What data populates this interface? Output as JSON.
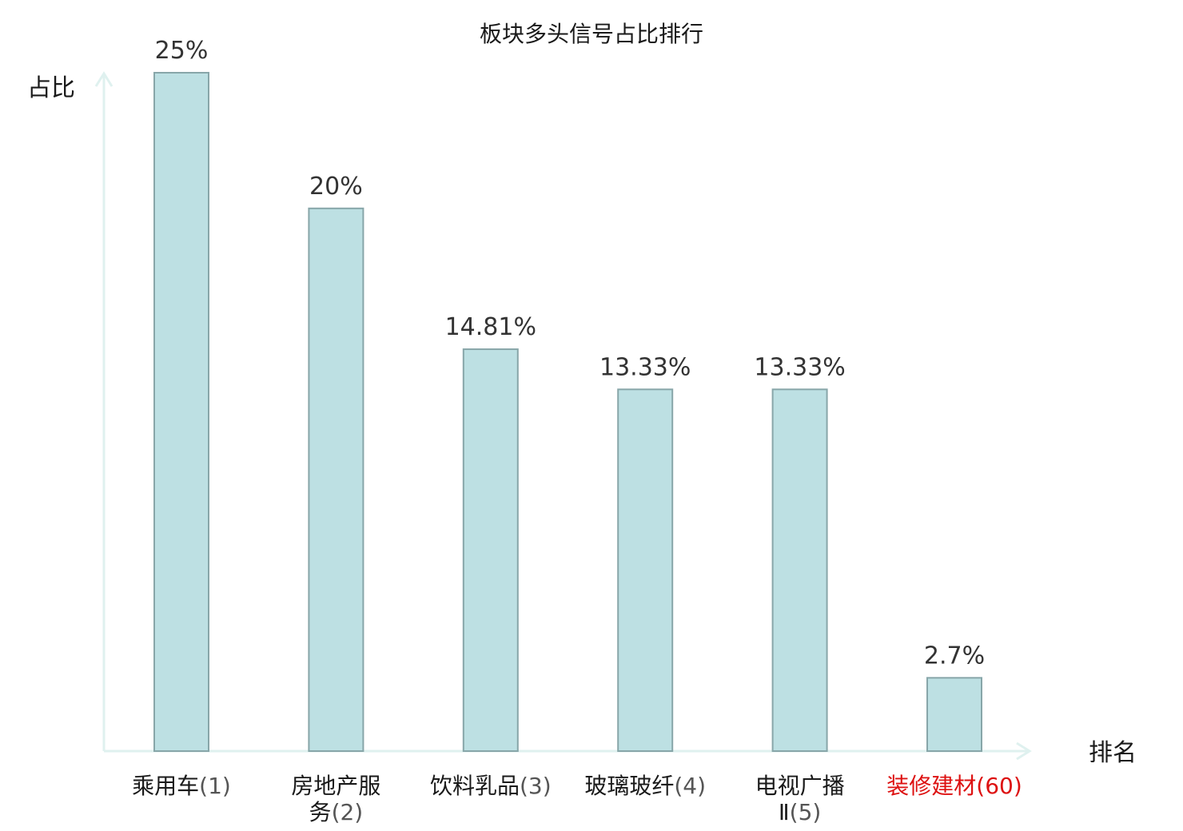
{
  "chart_data": {
    "type": "bar",
    "title": "板块多头信号占比排行",
    "ylabel": "占比",
    "xlabel": "排名",
    "categories": [
      {
        "name_lines": [
          "乘用车"
        ],
        "rank": "(1)",
        "highlight": false
      },
      {
        "name_lines": [
          "房地产服",
          "务"
        ],
        "rank": "(2)",
        "highlight": false
      },
      {
        "name_lines": [
          "饮料乳品"
        ],
        "rank": "(3)",
        "highlight": false
      },
      {
        "name_lines": [
          "玻璃玻纤"
        ],
        "rank": "(4)",
        "highlight": false
      },
      {
        "name_lines": [
          "电视广播",
          "Ⅱ"
        ],
        "rank": "(5)",
        "highlight": false
      },
      {
        "name_lines": [
          "装修建材"
        ],
        "rank": "(60)",
        "highlight": true
      }
    ],
    "values": [
      25,
      20,
      14.81,
      13.33,
      13.33,
      2.7
    ],
    "value_labels": [
      "25%",
      "20%",
      "14.81%",
      "13.33%",
      "13.33%",
      "2.7%"
    ],
    "ylim": [
      0,
      25
    ],
    "grid": false,
    "legend": "none",
    "colors": {
      "bar_fill": "#bde0e3",
      "bar_stroke": "#88a6a9",
      "axis": "#dff1ef",
      "highlight": "#dd1111"
    }
  }
}
